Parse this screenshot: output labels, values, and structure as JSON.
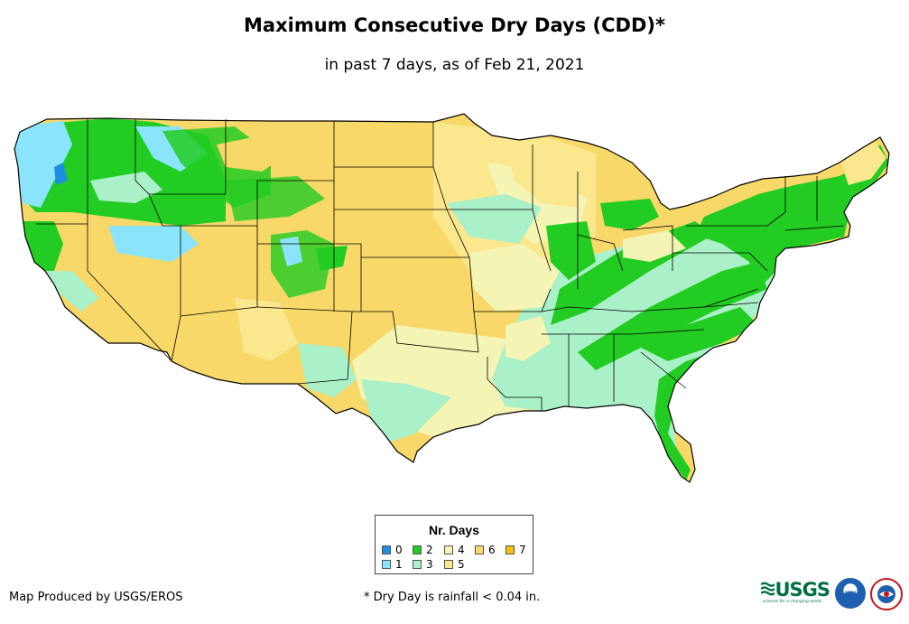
{
  "header": {
    "title": "Maximum Consecutive Dry Days (CDD)*",
    "subtitle": "in past 7 days, as of Feb 21, 2021"
  },
  "legend": {
    "title": "Nr. Days",
    "items": [
      {
        "label": "0",
        "color": "#1e8fe0"
      },
      {
        "label": "1",
        "color": "#8ae4fb"
      },
      {
        "label": "2",
        "color": "#22cc22"
      },
      {
        "label": "3",
        "color": "#aaf0c8"
      },
      {
        "label": "4",
        "color": "#f4f4b4"
      },
      {
        "label": "5",
        "color": "#fbe88e"
      },
      {
        "label": "6",
        "color": "#f8d868"
      },
      {
        "label": "7",
        "color": "#f5c310"
      }
    ]
  },
  "footer": {
    "producer": "Map Produced by USGS/EROS",
    "note": "* Dry Day is rainfall < 0.04 in."
  },
  "logos": {
    "usgs": "USGS",
    "usgs_tagline": "science for a changing world",
    "noaa": "noaa",
    "nws": "national weather service"
  }
}
